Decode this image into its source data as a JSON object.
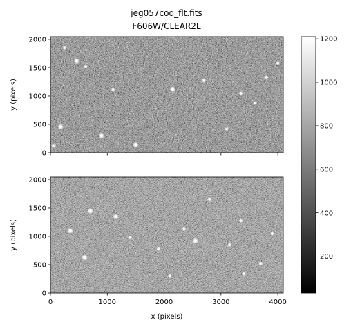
{
  "chart_data": {
    "type": "heatmap",
    "title": "jeg057coq_flt.fits",
    "subtitle": "F606W/CLEAR2L",
    "colormap": "gray",
    "colorbar": {
      "range": [
        30,
        1210
      ],
      "ticks": [
        200,
        400,
        600,
        800,
        1000,
        1200
      ],
      "tick_labels": [
        "200",
        "400",
        "600",
        "800",
        "1000",
        "1200"
      ]
    },
    "panels": [
      {
        "xlabel": "",
        "ylabel": "y (pixels)",
        "xlim": [
          0,
          4096
        ],
        "ylim": [
          0,
          2048
        ],
        "xticks": [
          0,
          1000,
          2000,
          3000,
          4000
        ],
        "xtick_labels": [
          "",
          "",
          "",
          "",
          ""
        ],
        "yticks": [
          0,
          500,
          1000,
          1500,
          2000
        ],
        "ytick_labels": [
          "0",
          "500",
          "1000",
          "1500",
          "2000"
        ],
        "bright_sources": [
          [
            460,
            1620
          ],
          [
            620,
            1520
          ],
          [
            1100,
            1110
          ],
          [
            2150,
            1120
          ],
          [
            3800,
            1330
          ],
          [
            4000,
            1580
          ],
          [
            180,
            460
          ],
          [
            3600,
            880
          ],
          [
            250,
            1850
          ],
          [
            1500,
            140
          ],
          [
            2700,
            1280
          ],
          [
            3350,
            1050
          ],
          [
            900,
            300
          ],
          [
            3100,
            420
          ],
          [
            50,
            120
          ]
        ]
      },
      {
        "xlabel": "x (pixels)",
        "ylabel": "y (pixels)",
        "xlim": [
          0,
          4096
        ],
        "ylim": [
          0,
          2048
        ],
        "xticks": [
          0,
          1000,
          2000,
          3000,
          4000
        ],
        "xtick_labels": [
          "0",
          "1000",
          "2000",
          "3000",
          "4000"
        ],
        "yticks": [
          0,
          500,
          1000,
          1500,
          2000
        ],
        "ytick_labels": [
          "0",
          "500",
          "1000",
          "1500",
          "2000"
        ],
        "bright_sources": [
          [
            600,
            630
          ],
          [
            1400,
            980
          ],
          [
            2350,
            1130
          ],
          [
            2550,
            920
          ],
          [
            3400,
            340
          ],
          [
            3350,
            1280
          ],
          [
            1150,
            1350
          ],
          [
            3700,
            520
          ],
          [
            2800,
            1650
          ],
          [
            350,
            1100
          ],
          [
            1900,
            780
          ],
          [
            3150,
            850
          ],
          [
            700,
            1450
          ],
          [
            3900,
            1050
          ],
          [
            2100,
            300
          ]
        ]
      }
    ]
  }
}
